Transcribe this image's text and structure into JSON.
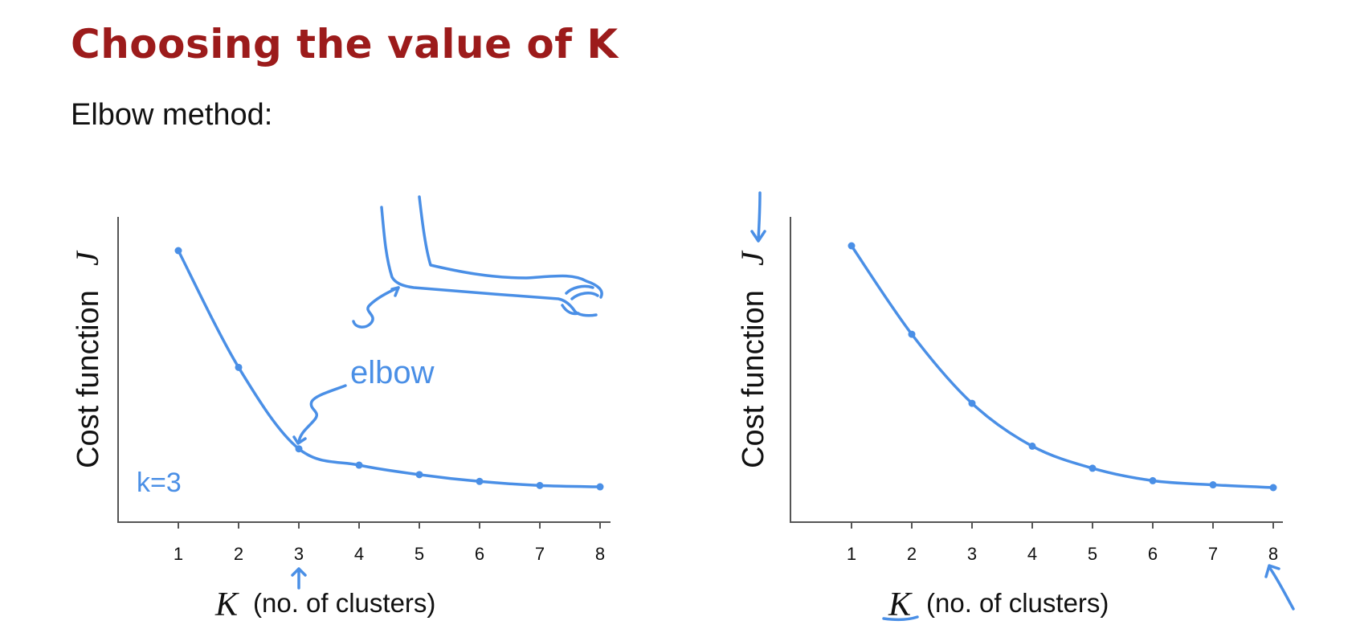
{
  "slide": {
    "title": "Choosing the value of K",
    "subtitle": "Elbow method:"
  },
  "annotations": {
    "elbow_label": "elbow",
    "k_choice": "k=3"
  },
  "colors": {
    "title": "#9c1b1b",
    "ink": "#4a8fe6",
    "text": "#111111"
  },
  "chart_data": [
    {
      "type": "line",
      "xlabel_var": "K",
      "xlabel_unit": "(no. of clusters)",
      "ylabel_text": "Cost function",
      "ylabel_var": "J",
      "x": [
        1,
        2,
        3,
        4,
        5,
        6,
        7,
        8
      ],
      "values": [
        100,
        57,
        27,
        21,
        17.5,
        15,
        13.5,
        13
      ],
      "ylim": [
        0,
        105
      ],
      "grid": false
    },
    {
      "type": "line",
      "xlabel_var": "K",
      "xlabel_unit": "(no. of clusters)",
      "ylabel_text": "Cost function",
      "ylabel_var": "J",
      "x": [
        1,
        2,
        3,
        4,
        5,
        6,
        7,
        8
      ],
      "values": [
        100,
        68,
        43,
        27.5,
        19.5,
        15,
        13.5,
        12.5
      ],
      "ylim": [
        0,
        105
      ],
      "grid": false
    }
  ]
}
